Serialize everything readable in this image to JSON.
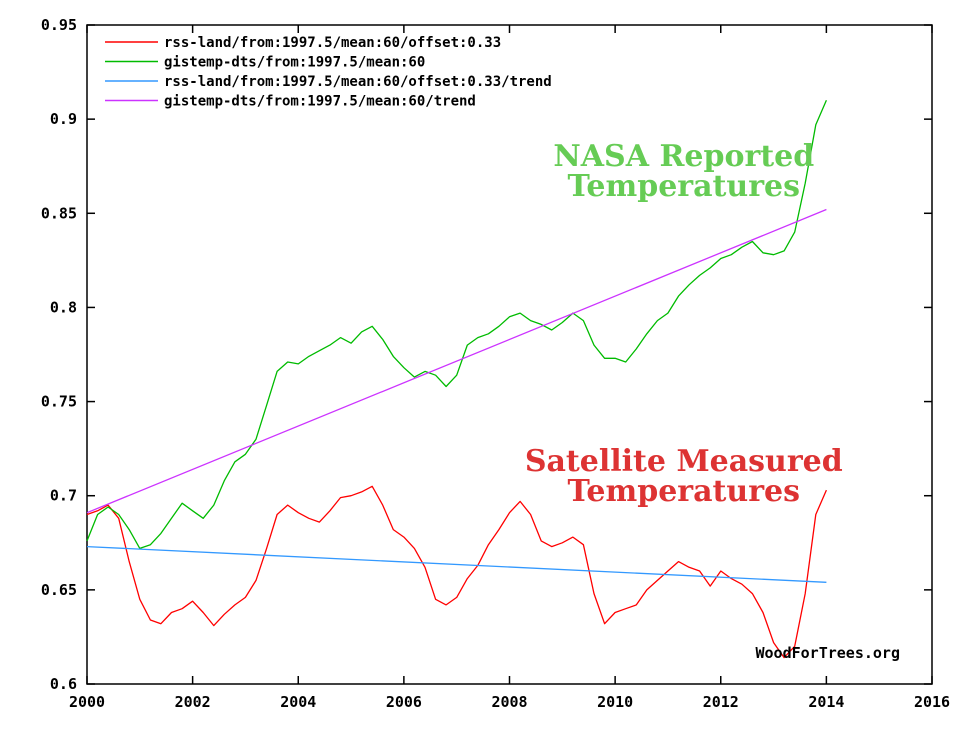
{
  "chart_data": {
    "type": "line",
    "xlim": [
      2000,
      2016
    ],
    "ylim": [
      0.6,
      0.95
    ],
    "x_ticks": [
      "2000",
      "2002",
      "2004",
      "2006",
      "2008",
      "2010",
      "2012",
      "2014",
      "2016"
    ],
    "y_ticks": [
      "0.6",
      "0.65",
      "0.7",
      "0.75",
      "0.8",
      "0.85",
      "0.9",
      "0.95"
    ],
    "grid": false,
    "legend_position": "top-left",
    "series": [
      {
        "name": "rss-land/from:1997.5/mean:60/offset:0.33",
        "color": "#ff0000",
        "points": [
          [
            2000.0,
            0.69
          ],
          [
            2000.2,
            0.692
          ],
          [
            2000.4,
            0.695
          ],
          [
            2000.6,
            0.688
          ],
          [
            2000.8,
            0.665
          ],
          [
            2001.0,
            0.645
          ],
          [
            2001.2,
            0.634
          ],
          [
            2001.4,
            0.632
          ],
          [
            2001.6,
            0.638
          ],
          [
            2001.8,
            0.64
          ],
          [
            2002.0,
            0.644
          ],
          [
            2002.2,
            0.638
          ],
          [
            2002.4,
            0.631
          ],
          [
            2002.6,
            0.637
          ],
          [
            2002.8,
            0.642
          ],
          [
            2003.0,
            0.646
          ],
          [
            2003.2,
            0.655
          ],
          [
            2003.4,
            0.672
          ],
          [
            2003.6,
            0.69
          ],
          [
            2003.8,
            0.695
          ],
          [
            2004.0,
            0.691
          ],
          [
            2004.2,
            0.688
          ],
          [
            2004.4,
            0.686
          ],
          [
            2004.6,
            0.692
          ],
          [
            2004.8,
            0.699
          ],
          [
            2005.0,
            0.7
          ],
          [
            2005.2,
            0.702
          ],
          [
            2005.4,
            0.705
          ],
          [
            2005.6,
            0.695
          ],
          [
            2005.8,
            0.682
          ],
          [
            2006.0,
            0.678
          ],
          [
            2006.2,
            0.672
          ],
          [
            2006.4,
            0.662
          ],
          [
            2006.6,
            0.645
          ],
          [
            2006.8,
            0.642
          ],
          [
            2007.0,
            0.646
          ],
          [
            2007.2,
            0.656
          ],
          [
            2007.4,
            0.663
          ],
          [
            2007.6,
            0.674
          ],
          [
            2007.8,
            0.682
          ],
          [
            2008.0,
            0.691
          ],
          [
            2008.2,
            0.697
          ],
          [
            2008.4,
            0.69
          ],
          [
            2008.6,
            0.676
          ],
          [
            2008.8,
            0.673
          ],
          [
            2009.0,
            0.675
          ],
          [
            2009.2,
            0.678
          ],
          [
            2009.4,
            0.674
          ],
          [
            2009.6,
            0.648
          ],
          [
            2009.8,
            0.632
          ],
          [
            2010.0,
            0.638
          ],
          [
            2010.2,
            0.64
          ],
          [
            2010.4,
            0.642
          ],
          [
            2010.6,
            0.65
          ],
          [
            2010.8,
            0.655
          ],
          [
            2011.0,
            0.66
          ],
          [
            2011.2,
            0.665
          ],
          [
            2011.4,
            0.662
          ],
          [
            2011.6,
            0.66
          ],
          [
            2011.8,
            0.652
          ],
          [
            2012.0,
            0.66
          ],
          [
            2012.2,
            0.656
          ],
          [
            2012.4,
            0.653
          ],
          [
            2012.6,
            0.648
          ],
          [
            2012.8,
            0.638
          ],
          [
            2013.0,
            0.622
          ],
          [
            2013.2,
            0.614
          ],
          [
            2013.4,
            0.62
          ],
          [
            2013.6,
            0.648
          ],
          [
            2013.8,
            0.69
          ],
          [
            2014.0,
            0.703
          ]
        ]
      },
      {
        "name": "gistemp-dts/from:1997.5/mean:60",
        "color": "#00bb00",
        "points": [
          [
            2000.0,
            0.676
          ],
          [
            2000.2,
            0.69
          ],
          [
            2000.4,
            0.694
          ],
          [
            2000.6,
            0.69
          ],
          [
            2000.8,
            0.682
          ],
          [
            2001.0,
            0.672
          ],
          [
            2001.2,
            0.674
          ],
          [
            2001.4,
            0.68
          ],
          [
            2001.6,
            0.688
          ],
          [
            2001.8,
            0.696
          ],
          [
            2002.0,
            0.692
          ],
          [
            2002.2,
            0.688
          ],
          [
            2002.4,
            0.695
          ],
          [
            2002.6,
            0.708
          ],
          [
            2002.8,
            0.718
          ],
          [
            2003.0,
            0.722
          ],
          [
            2003.2,
            0.73
          ],
          [
            2003.4,
            0.748
          ],
          [
            2003.6,
            0.766
          ],
          [
            2003.8,
            0.771
          ],
          [
            2004.0,
            0.77
          ],
          [
            2004.2,
            0.774
          ],
          [
            2004.4,
            0.777
          ],
          [
            2004.6,
            0.78
          ],
          [
            2004.8,
            0.784
          ],
          [
            2005.0,
            0.781
          ],
          [
            2005.2,
            0.787
          ],
          [
            2005.4,
            0.79
          ],
          [
            2005.6,
            0.783
          ],
          [
            2005.8,
            0.774
          ],
          [
            2006.0,
            0.768
          ],
          [
            2006.2,
            0.763
          ],
          [
            2006.4,
            0.766
          ],
          [
            2006.6,
            0.764
          ],
          [
            2006.8,
            0.758
          ],
          [
            2007.0,
            0.764
          ],
          [
            2007.2,
            0.78
          ],
          [
            2007.4,
            0.784
          ],
          [
            2007.6,
            0.786
          ],
          [
            2007.8,
            0.79
          ],
          [
            2008.0,
            0.795
          ],
          [
            2008.2,
            0.797
          ],
          [
            2008.4,
            0.793
          ],
          [
            2008.6,
            0.791
          ],
          [
            2008.8,
            0.788
          ],
          [
            2009.0,
            0.792
          ],
          [
            2009.2,
            0.797
          ],
          [
            2009.4,
            0.793
          ],
          [
            2009.6,
            0.78
          ],
          [
            2009.8,
            0.773
          ],
          [
            2010.0,
            0.773
          ],
          [
            2010.2,
            0.771
          ],
          [
            2010.4,
            0.778
          ],
          [
            2010.6,
            0.786
          ],
          [
            2010.8,
            0.793
          ],
          [
            2011.0,
            0.797
          ],
          [
            2011.2,
            0.806
          ],
          [
            2011.4,
            0.812
          ],
          [
            2011.6,
            0.817
          ],
          [
            2011.8,
            0.821
          ],
          [
            2012.0,
            0.826
          ],
          [
            2012.2,
            0.828
          ],
          [
            2012.4,
            0.832
          ],
          [
            2012.6,
            0.835
          ],
          [
            2012.8,
            0.829
          ],
          [
            2013.0,
            0.828
          ],
          [
            2013.2,
            0.83
          ],
          [
            2013.4,
            0.84
          ],
          [
            2013.6,
            0.866
          ],
          [
            2013.8,
            0.897
          ],
          [
            2014.0,
            0.91
          ]
        ]
      },
      {
        "name": "rss-land/from:1997.5/mean:60/offset:0.33/trend",
        "color": "#3399ff",
        "points": [
          [
            2000.0,
            0.673
          ],
          [
            2014.0,
            0.654
          ]
        ]
      },
      {
        "name": "gistemp-dts/from:1997.5/mean:60/trend",
        "color": "#cc33ff",
        "points": [
          [
            2000.0,
            0.691
          ],
          [
            2014.0,
            0.852
          ]
        ]
      }
    ],
    "annotations": [
      {
        "lines": [
          "NASA Reported",
          "Temperatures"
        ],
        "color": "#66cc55",
        "x": 2011.3,
        "y": 0.875
      },
      {
        "lines": [
          "Satellite Measured",
          "Temperatures"
        ],
        "color": "#dd3333",
        "x": 2011.3,
        "y": 0.713
      }
    ],
    "credit": "WoodForTrees.org"
  }
}
